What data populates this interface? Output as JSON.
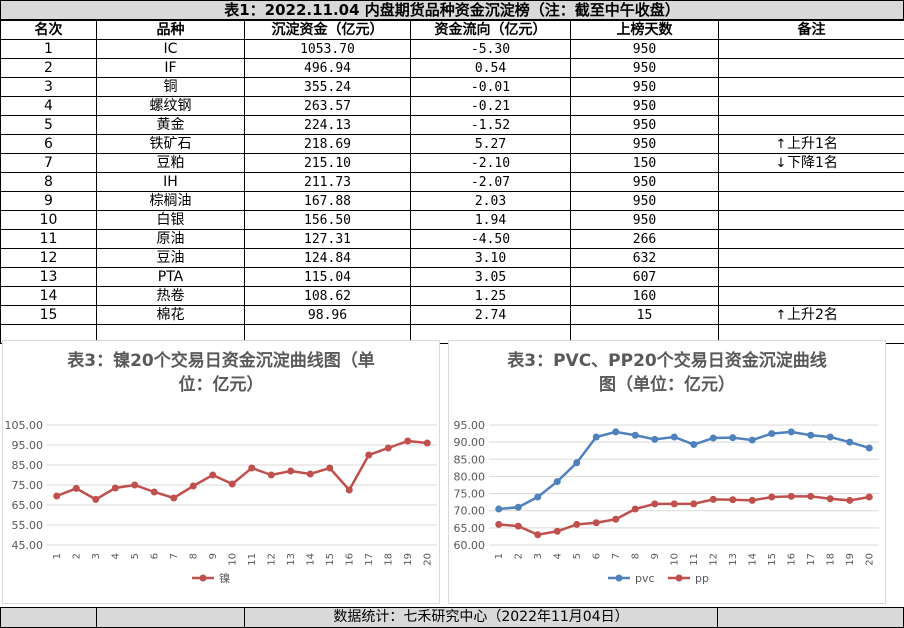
{
  "title": "表1：2022.11.04 内盘期货品种资金沉淀榜（注：截至中午收盘）",
  "columns": [
    "名次",
    "品种",
    "沉淀资金（亿元）",
    "资金流向（亿元）",
    "上榜天数",
    "备注"
  ],
  "rows": [
    {
      "rank": "1",
      "name": "IC",
      "capital": "1053.70",
      "flow": "-5.30",
      "days": "950",
      "note": "",
      "arrow": ""
    },
    {
      "rank": "2",
      "name": "IF",
      "capital": "496.94",
      "flow": "0.54",
      "days": "950",
      "note": "",
      "arrow": ""
    },
    {
      "rank": "3",
      "name": "铜",
      "capital": "355.24",
      "flow": "-0.01",
      "days": "950",
      "note": "",
      "arrow": ""
    },
    {
      "rank": "4",
      "name": "螺纹钢",
      "capital": "263.57",
      "flow": "-0.21",
      "days": "950",
      "note": "",
      "arrow": ""
    },
    {
      "rank": "5",
      "name": "黄金",
      "capital": "224.13",
      "flow": "-1.52",
      "days": "950",
      "note": "",
      "arrow": ""
    },
    {
      "rank": "6",
      "name": "铁矿石",
      "capital": "218.69",
      "flow": "5.27",
      "days": "950",
      "note": "上升1名",
      "arrow": "↑"
    },
    {
      "rank": "7",
      "name": "豆粕",
      "capital": "215.10",
      "flow": "-2.10",
      "days": "150",
      "note": "下降1名",
      "arrow": "↓"
    },
    {
      "rank": "8",
      "name": "IH",
      "capital": "211.73",
      "flow": "-2.07",
      "days": "950",
      "note": "",
      "arrow": ""
    },
    {
      "rank": "9",
      "name": "棕榈油",
      "capital": "167.88",
      "flow": "2.03",
      "days": "950",
      "note": "",
      "arrow": ""
    },
    {
      "rank": "10",
      "name": "白银",
      "capital": "156.50",
      "flow": "1.94",
      "days": "950",
      "note": "",
      "arrow": ""
    },
    {
      "rank": "11",
      "name": "原油",
      "capital": "127.31",
      "flow": "-4.50",
      "days": "266",
      "note": "",
      "arrow": ""
    },
    {
      "rank": "12",
      "name": "豆油",
      "capital": "124.84",
      "flow": "3.10",
      "days": "632",
      "note": "",
      "arrow": ""
    },
    {
      "rank": "13",
      "name": "PTA",
      "capital": "115.04",
      "flow": "3.05",
      "days": "607",
      "note": "",
      "arrow": ""
    },
    {
      "rank": "14",
      "name": "热卷",
      "capital": "108.62",
      "flow": "1.25",
      "days": "160",
      "note": "",
      "arrow": ""
    },
    {
      "rank": "15",
      "name": "棉花",
      "capital": "98.96",
      "flow": "2.74",
      "days": "15",
      "note": "上升2名",
      "arrow": "↑"
    }
  ],
  "footer": "数据统计：七禾研究中心（2022年11月04日）",
  "chart_data": [
    {
      "type": "line",
      "title_line1": "表3：镍20个交易日资金沉淀曲线图（单",
      "title_line2": "位：亿元）",
      "categories": [
        "1",
        "2",
        "3",
        "4",
        "5",
        "6",
        "7",
        "8",
        "9",
        "10",
        "11",
        "12",
        "13",
        "14",
        "15",
        "16",
        "17",
        "18",
        "19",
        "20"
      ],
      "y_ticks": [
        "45.00",
        "55.00",
        "65.00",
        "75.00",
        "85.00",
        "95.00",
        "105.00"
      ],
      "ylim": [
        45,
        105
      ],
      "series": [
        {
          "name": "镍",
          "color": "#c0504d",
          "values": [
            69.5,
            73.3,
            67.8,
            73.5,
            75.0,
            71.5,
            68.5,
            74.5,
            80.0,
            75.5,
            83.5,
            80.0,
            82.0,
            80.5,
            83.5,
            72.5,
            90.0,
            93.5,
            97.0,
            96.0
          ]
        }
      ]
    },
    {
      "type": "line",
      "title_line1": "表3：PVC、PP20个交易日资金沉淀曲线",
      "title_line2": "图（单位：亿元）",
      "categories": [
        "1",
        "2",
        "3",
        "4",
        "5",
        "6",
        "7",
        "8",
        "9",
        "10",
        "11",
        "12",
        "13",
        "14",
        "15",
        "16",
        "17",
        "18",
        "19",
        "20"
      ],
      "y_ticks": [
        "60.00",
        "65.00",
        "70.00",
        "75.00",
        "80.00",
        "85.00",
        "90.00",
        "95.00"
      ],
      "ylim": [
        60,
        95
      ],
      "series": [
        {
          "name": "pvc",
          "color": "#4f81bd",
          "values": [
            70.5,
            71.0,
            74.0,
            78.5,
            84.0,
            91.5,
            93.0,
            92.0,
            90.8,
            91.5,
            89.3,
            91.2,
            91.3,
            90.6,
            92.5,
            93.0,
            92.0,
            91.5,
            90.0,
            88.3
          ]
        },
        {
          "name": "pp",
          "color": "#c0504d",
          "values": [
            66.0,
            65.5,
            63.0,
            64.0,
            66.0,
            66.5,
            67.5,
            70.5,
            72.0,
            72.0,
            72.0,
            73.3,
            73.2,
            73.0,
            74.0,
            74.2,
            74.2,
            73.5,
            73.0,
            74.0
          ]
        }
      ]
    }
  ]
}
